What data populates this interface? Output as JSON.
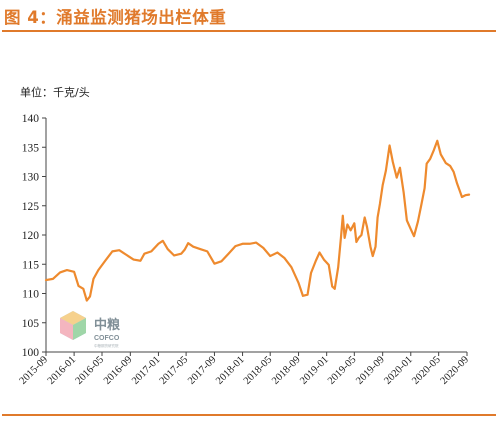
{
  "header": {
    "title": "图 4：涌益监测猪场出栏体重"
  },
  "colors": {
    "accent": "#e07a2b",
    "line": "#ee8a2e",
    "axis": "#444444"
  },
  "logo": {
    "cn": "中粮",
    "en": "COFCO",
    "sub": "中粮期货研究院"
  },
  "chart_data": {
    "type": "line",
    "title": "",
    "ylabel": "单位：千克/头",
    "xlabel": "",
    "ylim": [
      100,
      140
    ],
    "xlim": [
      "2015-09",
      "2020-09"
    ],
    "y_ticks": [
      "100",
      "105",
      "110",
      "115",
      "120",
      "125",
      "130",
      "135",
      "140"
    ],
    "x_ticks": [
      "2015-09",
      "2016-01",
      "2016-05",
      "2016-09",
      "2017-01",
      "2017-05",
      "2017-09",
      "2018-01",
      "2018-05",
      "2018-09",
      "2019-01",
      "2019-05",
      "2019-09",
      "2020-01",
      "2020-05",
      "2020-09"
    ],
    "grid": false,
    "legend": "none",
    "series": [
      {
        "values": [
          [
            "2015-09-01",
            112.3
          ],
          [
            "2015-10-01",
            112.5
          ],
          [
            "2015-11-01",
            113.6
          ],
          [
            "2015-12-01",
            114.0
          ],
          [
            "2016-01-01",
            113.7
          ],
          [
            "2016-01-20",
            111.3
          ],
          [
            "2016-02-10",
            110.8
          ],
          [
            "2016-02-25",
            108.8
          ],
          [
            "2016-03-10",
            109.5
          ],
          [
            "2016-03-25",
            112.5
          ],
          [
            "2016-04-15",
            114.0
          ],
          [
            "2016-05-15",
            115.6
          ],
          [
            "2016-06-15",
            117.2
          ],
          [
            "2016-07-15",
            117.4
          ],
          [
            "2016-08-15",
            116.6
          ],
          [
            "2016-09-15",
            115.8
          ],
          [
            "2016-10-15",
            115.6
          ],
          [
            "2016-11-01",
            116.8
          ],
          [
            "2016-12-01",
            117.2
          ],
          [
            "2017-01-01",
            118.5
          ],
          [
            "2017-01-20",
            119.0
          ],
          [
            "2017-02-10",
            117.6
          ],
          [
            "2017-03-10",
            116.5
          ],
          [
            "2017-04-10",
            116.8
          ],
          [
            "2017-04-25",
            117.5
          ],
          [
            "2017-05-10",
            118.6
          ],
          [
            "2017-06-01",
            118.0
          ],
          [
            "2017-07-01",
            117.6
          ],
          [
            "2017-08-01",
            117.2
          ],
          [
            "2017-09-01",
            115.1
          ],
          [
            "2017-10-01",
            115.5
          ],
          [
            "2017-11-01",
            116.8
          ],
          [
            "2017-12-01",
            118.1
          ],
          [
            "2018-01-01",
            118.5
          ],
          [
            "2018-02-01",
            118.5
          ],
          [
            "2018-03-01",
            118.7
          ],
          [
            "2018-04-01",
            117.8
          ],
          [
            "2018-05-01",
            116.4
          ],
          [
            "2018-06-01",
            117.0
          ],
          [
            "2018-07-01",
            116.1
          ],
          [
            "2018-08-01",
            114.5
          ],
          [
            "2018-09-01",
            111.8
          ],
          [
            "2018-09-20",
            109.6
          ],
          [
            "2018-10-10",
            109.8
          ],
          [
            "2018-10-25",
            113.5
          ],
          [
            "2018-11-15",
            115.6
          ],
          [
            "2018-12-01",
            117.0
          ],
          [
            "2018-12-20",
            115.8
          ],
          [
            "2019-01-10",
            114.9
          ],
          [
            "2019-01-25",
            111.2
          ],
          [
            "2019-02-05",
            110.8
          ],
          [
            "2019-02-20",
            114.5
          ],
          [
            "2019-03-05",
            120.0
          ],
          [
            "2019-03-12",
            123.3
          ],
          [
            "2019-03-20",
            119.5
          ],
          [
            "2019-04-01",
            121.8
          ],
          [
            "2019-04-15",
            120.8
          ],
          [
            "2019-05-01",
            122.0
          ],
          [
            "2019-05-10",
            118.8
          ],
          [
            "2019-05-20",
            119.5
          ],
          [
            "2019-06-01",
            120.0
          ],
          [
            "2019-06-15",
            123.0
          ],
          [
            "2019-06-25",
            121.4
          ],
          [
            "2019-07-10",
            118.0
          ],
          [
            "2019-07-20",
            116.4
          ],
          [
            "2019-08-01",
            118.0
          ],
          [
            "2019-08-10",
            123.0
          ],
          [
            "2019-08-20",
            125.3
          ],
          [
            "2019-09-01",
            128.5
          ],
          [
            "2019-09-15",
            131.0
          ],
          [
            "2019-10-01",
            135.3
          ],
          [
            "2019-10-15",
            132.5
          ],
          [
            "2019-11-01",
            129.8
          ],
          [
            "2019-11-15",
            131.5
          ],
          [
            "2019-12-01",
            127.3
          ],
          [
            "2019-12-15",
            122.5
          ],
          [
            "2020-01-01",
            121.0
          ],
          [
            "2020-01-15",
            119.8
          ],
          [
            "2020-02-01",
            122.3
          ],
          [
            "2020-02-15",
            125.0
          ],
          [
            "2020-03-01",
            128.0
          ],
          [
            "2020-03-10",
            132.2
          ],
          [
            "2020-03-25",
            133.0
          ],
          [
            "2020-04-10",
            134.5
          ],
          [
            "2020-04-25",
            136.1
          ],
          [
            "2020-05-10",
            133.8
          ],
          [
            "2020-06-01",
            132.3
          ],
          [
            "2020-06-20",
            131.8
          ],
          [
            "2020-07-05",
            130.8
          ],
          [
            "2020-07-20",
            128.8
          ],
          [
            "2020-08-01",
            127.5
          ],
          [
            "2020-08-10",
            126.5
          ],
          [
            "2020-08-25",
            126.8
          ],
          [
            "2020-09-10",
            126.9
          ]
        ]
      }
    ]
  }
}
